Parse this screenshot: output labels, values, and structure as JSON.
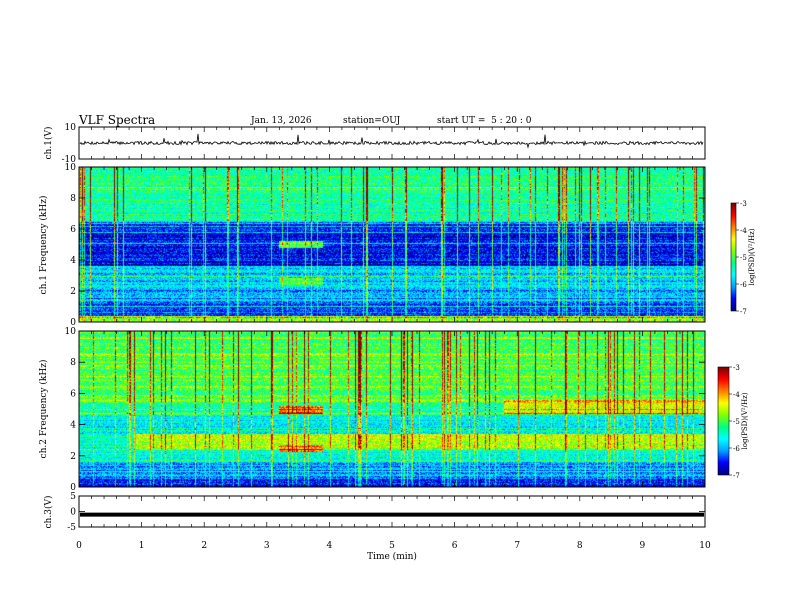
{
  "header": {
    "title": "VLF Spectra",
    "date": "Jan. 13, 2026",
    "station": "station=OUJ",
    "start_ut": "start UT =  5 : 20 : 0"
  },
  "chart_data": [
    {
      "type": "line",
      "panel": "ch1-waveform",
      "ylabel": "ch.1(V)",
      "ylim": [
        -10,
        10
      ],
      "yticks": [
        "10",
        "-10"
      ],
      "xlim": [
        0,
        10
      ],
      "description_values": {
        "baseline_v": 0,
        "noise_amplitude_v": 1
      }
    },
    {
      "type": "heatmap",
      "panel": "ch1-spectrogram",
      "ylabel": "ch.1\nFrequency (kHz)",
      "ylim": [
        0,
        10
      ],
      "yticks": [
        "0",
        "2",
        "4",
        "6",
        "8",
        "10"
      ],
      "xlim": [
        0,
        10
      ],
      "colorbar": {
        "label": "log(PSD)(V²/Hz)",
        "range": [
          -7,
          -3
        ],
        "ticks": [
          "-3",
          "-4",
          "-5",
          "-6",
          "-7"
        ]
      },
      "features": [
        {
          "t_min": [
            3.2,
            3.9
          ],
          "f_khz": [
            4.8,
            5.2
          ],
          "log_psd": -5.0
        },
        {
          "t_min": [
            3.2,
            3.9
          ],
          "f_khz": [
            2.4,
            2.8
          ],
          "log_psd": -5.0
        },
        {
          "t_min": [
            0,
            10
          ],
          "f_khz": [
            6.5,
            10
          ],
          "log_psd": -5.3
        },
        {
          "t_min": [
            0,
            10
          ],
          "f_khz": [
            4.0,
            6.0
          ],
          "log_psd": -6.6
        }
      ]
    },
    {
      "type": "heatmap",
      "panel": "ch2-spectrogram",
      "ylabel": "ch.2\nFrequency (kHz)",
      "ylim": [
        0,
        10
      ],
      "yticks": [
        "0",
        "2",
        "4",
        "6",
        "8",
        "10"
      ],
      "xlim": [
        0,
        10
      ],
      "colorbar": {
        "label": "log(PSD)(V²/Hz)",
        "range": [
          -7,
          -3
        ],
        "ticks": [
          "-3",
          "-4",
          "-5",
          "-6",
          "-7"
        ]
      },
      "features": [
        {
          "t_min": [
            3.2,
            3.9
          ],
          "f_khz": [
            4.7,
            5.2
          ],
          "log_psd": -3.8
        },
        {
          "t_min": [
            3.2,
            3.9
          ],
          "f_khz": [
            2.2,
            2.7
          ],
          "log_psd": -3.9
        },
        {
          "t_min": [
            6.8,
            10
          ],
          "f_khz": [
            4.7,
            5.6
          ],
          "log_psd": -4.4
        },
        {
          "t_min": [
            0.9,
            10
          ],
          "f_khz": [
            2.4,
            3.4
          ],
          "log_psd": -4.6
        },
        {
          "t_min": [
            0,
            10
          ],
          "f_khz": [
            5.5,
            10
          ],
          "log_psd": -5.1
        }
      ]
    },
    {
      "type": "line",
      "panel": "ch3-waveform",
      "ylabel": "ch.3(V)",
      "ylim": [
        -5,
        5
      ],
      "yticks": [
        "5",
        "0",
        "-5"
      ],
      "xlim": [
        0,
        10
      ],
      "description_values": {
        "baseline_v": -1
      },
      "xlabel": "Time (min)",
      "xticks": [
        "0",
        "1",
        "2",
        "3",
        "4",
        "5",
        "6",
        "7",
        "8",
        "9",
        "10"
      ]
    }
  ],
  "colors": {
    "cmap": [
      "#000080",
      "#0000ff",
      "#00a0ff",
      "#00ffff",
      "#00ff80",
      "#80ff00",
      "#ffff00",
      "#ff8000",
      "#ff0000",
      "#800000"
    ]
  }
}
